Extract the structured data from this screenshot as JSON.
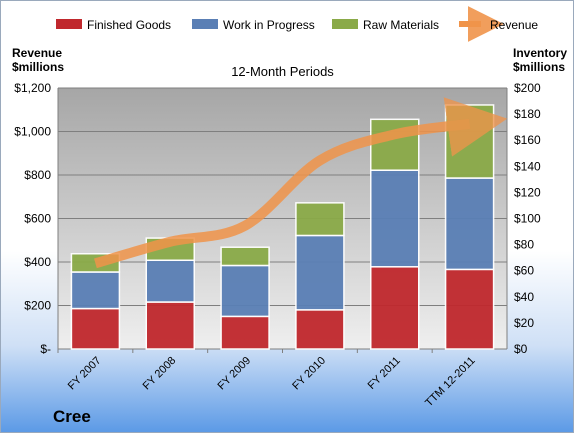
{
  "chart_data": {
    "type": "bar",
    "stacked": true,
    "title": "12-Month Periods",
    "left_axis_title_line1": "Revenue",
    "left_axis_title_line2": "$millions",
    "right_axis_title_line1": "Inventory",
    "right_axis_title_line2": "$millions",
    "categories": [
      "FY 2007",
      "FY 2008",
      "FY 2009",
      "FY 2010",
      "FY 2011",
      "TTM 12-2011"
    ],
    "left_ylim": [
      0,
      1200
    ],
    "right_ylim": [
      0,
      200
    ],
    "left_ticks": [
      "$-",
      "$200",
      "$400",
      "$600",
      "$800",
      "$1,000",
      "$1,200"
    ],
    "right_ticks": [
      "$0",
      "$20",
      "$40",
      "$60",
      "$80",
      "$100",
      "$120",
      "$140",
      "$160",
      "$180",
      "$200"
    ],
    "series": [
      {
        "name": "Finished Goods",
        "color": "#c0282d",
        "axis": "right",
        "values": [
          31,
          36,
          25,
          30,
          63,
          61
        ]
      },
      {
        "name": "Work in Progress",
        "color": "#5a7fb5",
        "axis": "right",
        "values": [
          28,
          32,
          39,
          57,
          74,
          70
        ]
      },
      {
        "name": "Raw Materials",
        "color": "#8aaa48",
        "axis": "right",
        "values": [
          14,
          17,
          14,
          25,
          39,
          56
        ]
      },
      {
        "name": "Revenue",
        "type": "line",
        "color": "#f0944a",
        "axis": "left",
        "values": [
          394,
          493,
          567,
          867,
          987,
          1035
        ]
      }
    ],
    "legend_position": "top",
    "grid": true
  },
  "footer": {
    "company": "Cree"
  }
}
